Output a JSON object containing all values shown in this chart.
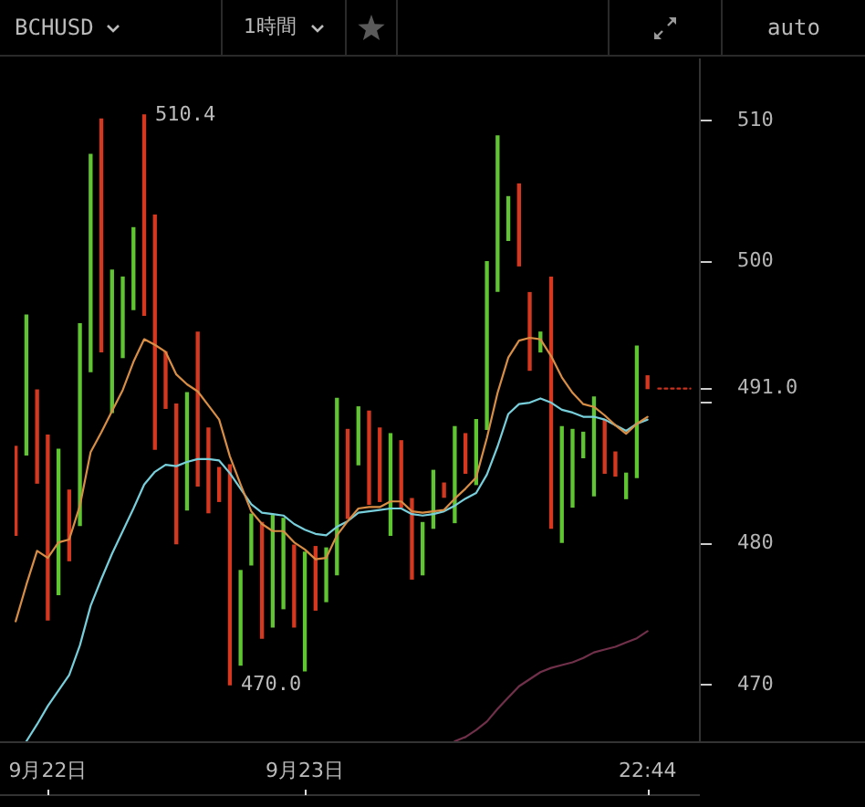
{
  "chart_data": {
    "type": "bar",
    "title": "BCHUSD",
    "annotations": [
      "1時間",
      "auto",
      "510.4",
      "470.0"
    ],
    "categories": [
      null,
      null,
      null,
      "9月22日",
      null,
      null,
      null,
      null,
      null,
      null,
      null,
      null,
      null,
      null,
      null,
      null,
      null,
      null,
      null,
      null,
      null,
      null,
      null,
      null,
      null,
      null,
      null,
      "9月23日",
      null,
      null,
      null,
      null,
      null,
      null,
      null,
      null,
      null,
      null,
      null,
      null,
      null,
      null,
      null,
      null,
      null,
      null,
      null,
      null,
      null,
      null,
      null,
      null,
      null,
      null,
      null,
      null,
      null,
      null,
      null,
      "22:44",
      null,
      null,
      null,
      null
    ],
    "ylim": [
      466.0,
      514.4
    ],
    "yticks": [
      470,
      480,
      {
        "value": 490,
        "label": null
      },
      {
        "value": 491,
        "label": "491.0"
      },
      500,
      510
    ],
    "marker": "none",
    "series": [
      {
        "base": [
          480.6,
          486.3,
          484.3,
          474.6,
          476.4,
          478.8,
          481.3,
          492.2,
          493.6,
          489.3,
          493.2,
          496.6,
          496.2,
          486.7,
          489.6,
          480.0,
          482.4,
          484.1,
          482.2,
          483.0,
          470.0,
          471.4,
          478.5,
          473.3,
          474.1,
          475.4,
          474.1,
          471.0,
          475.3,
          475.9,
          477.8,
          481.8,
          485.6,
          482.8,
          483.0,
          480.6,
          482.6,
          477.5,
          477.8,
          481.1,
          483.3,
          481.5,
          485.0,
          484.2,
          488.1,
          497.9,
          501.5,
          499.7,
          492.3,
          493.6,
          481.1,
          480.1,
          482.6,
          486.1,
          483.4,
          485.0,
          484.8,
          483.2,
          484.7,
          491.0,
          null,
          null,
          null,
          null
        ],
        "values": [
          6.3,
          9.9,
          6.6,
          13.1,
          10.3,
          5.0,
          14.3,
          15.4,
          16.5,
          10.1,
          5.7,
          5.8,
          14.2,
          16.6,
          4.0,
          9.9,
          8.3,
          10.9,
          6.0,
          2.4,
          15.6,
          6.7,
          3.6,
          8.2,
          7.9,
          6.4,
          5.8,
          8.4,
          4.5,
          3.8,
          12.5,
          6.3,
          4.1,
          6.6,
          5.2,
          7.2,
          4.7,
          5.7,
          3.7,
          4.1,
          1.0,
          6.8,
          2.8,
          4.6,
          11.9,
          11.0,
          3.1,
          5.8,
          5.5,
          1.4,
          17.8,
          8.2,
          5.5,
          1.8,
          7.0,
          3.8,
          1.7,
          1.8,
          9.3,
          0.9,
          null,
          null,
          null,
          null
        ],
        "colors": [
          "#d6381f",
          "#5fc531",
          "#d6381f",
          "#d6381f",
          "#5fc531",
          "#d6381f",
          "#5fc531",
          "#5fc531",
          "#d6381f",
          "#5fc531",
          "#5fc531",
          "#5fc531",
          "#d6381f",
          "#d6381f",
          "#d6381f",
          "#d6381f",
          "#5fc531",
          "#d6381f",
          "#d6381f",
          "#d6381f",
          "#d6381f",
          "#5fc531",
          "#5fc531",
          "#d6381f",
          "#5fc531",
          "#5fc531",
          "#d6381f",
          "#5fc531",
          "#d6381f",
          "#5fc531",
          "#5fc531",
          "#d6381f",
          "#5fc531",
          "#d6381f",
          "#d6381f",
          "#5fc531",
          "#d6381f",
          "#d6381f",
          "#5fc531",
          "#5fc531",
          "#d6381f",
          "#5fc531",
          "#d6381f",
          "#5fc531",
          "#5fc531",
          "#5fc531",
          "#5fc531",
          "#d6381f",
          "#d6381f",
          "#5fc531",
          "#d6381f",
          "#5fc531",
          "#5fc531",
          "#5fc531",
          "#5fc531",
          "#d6381f",
          "#d6381f",
          "#5fc531",
          "#5fc531",
          "#d6381f",
          null,
          null,
          null,
          null
        ]
      },
      {
        "type": "line",
        "color": "#d98e45",
        "values": [
          474.5,
          477.1,
          479.5,
          479.0,
          480.1,
          480.3,
          482.7,
          486.5,
          487.9,
          489.4,
          490.9,
          492.9,
          494.5,
          494.1,
          493.6,
          492.0,
          491.3,
          490.8,
          489.8,
          488.8,
          486.2,
          484.2,
          482.3,
          481.4,
          480.9,
          480.9,
          480.1,
          479.6,
          478.9,
          479.0,
          480.6,
          481.6,
          482.5,
          482.6,
          482.6,
          483.0,
          483.0,
          482.3,
          482.2,
          482.3,
          482.4,
          483.2,
          483.9,
          484.7,
          487.5,
          490.7,
          493.2,
          494.4,
          494.6,
          494.5,
          493.3,
          491.8,
          490.7,
          489.9,
          489.7,
          489.1,
          488.4,
          487.8,
          488.5,
          489.0,
          null,
          null,
          null,
          null
        ]
      },
      {
        "type": "line",
        "color": "#78cfdc",
        "values": [
          null,
          466.0,
          467.2,
          468.5,
          469.6,
          470.7,
          472.8,
          475.6,
          477.5,
          479.3,
          480.9,
          482.5,
          484.2,
          485.1,
          485.6,
          485.5,
          485.8,
          486.0,
          486.0,
          485.9,
          485.0,
          483.9,
          482.8,
          482.2,
          482.1,
          482.0,
          481.4,
          481.0,
          480.7,
          480.6,
          481.2,
          481.6,
          482.2,
          482.3,
          482.4,
          482.5,
          482.5,
          482.1,
          482.0,
          482.1,
          482.3,
          482.7,
          483.2,
          483.6,
          484.9,
          486.9,
          489.2,
          489.9,
          490.0,
          490.3,
          490.0,
          489.5,
          489.3,
          489.0,
          489.0,
          488.8,
          488.4,
          488.0,
          488.5,
          488.8,
          null,
          null,
          null,
          null
        ]
      },
      {
        "type": "line",
        "color": "#703049",
        "values": [
          null,
          null,
          null,
          null,
          null,
          null,
          null,
          null,
          null,
          null,
          null,
          null,
          null,
          null,
          null,
          null,
          null,
          null,
          null,
          null,
          null,
          null,
          null,
          null,
          null,
          null,
          null,
          null,
          null,
          null,
          null,
          null,
          null,
          null,
          null,
          null,
          null,
          null,
          null,
          null,
          null,
          466.0,
          466.3,
          466.8,
          467.4,
          468.3,
          469.1,
          469.9,
          470.4,
          470.9,
          471.2,
          471.4,
          471.6,
          471.9,
          472.3,
          472.5,
          472.7,
          473.0,
          473.3,
          473.8,
          null,
          null,
          null,
          null
        ]
      },
      {
        "type": "line",
        "color": "#c8321e",
        "line_style": "dotted",
        "values": [
          null,
          null,
          null,
          null,
          null,
          null,
          null,
          null,
          null,
          null,
          null,
          null,
          null,
          null,
          null,
          null,
          null,
          null,
          null,
          null,
          null,
          null,
          null,
          null,
          null,
          null,
          null,
          null,
          null,
          null,
          null,
          null,
          null,
          null,
          null,
          null,
          null,
          null,
          null,
          null,
          null,
          null,
          null,
          null,
          null,
          null,
          null,
          null,
          null,
          null,
          null,
          null,
          null,
          null,
          null,
          null,
          null,
          null,
          null,
          null,
          491.0,
          491.0,
          491.0,
          491.0
        ]
      }
    ]
  }
}
